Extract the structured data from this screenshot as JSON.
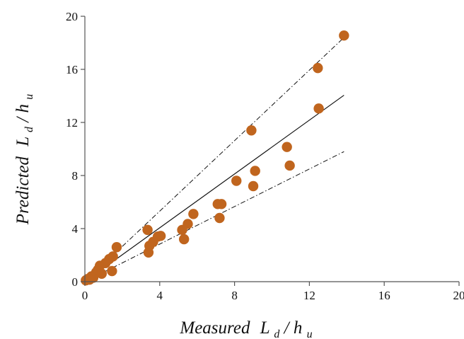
{
  "chart_data": {
    "type": "scatter",
    "title": "",
    "xlabel": {
      "prefix": "Measured",
      "main": "L",
      "sub": "d",
      "slash": "/",
      "main2": "h",
      "sub2": "u"
    },
    "ylabel": {
      "prefix": "Predicted",
      "main": "L",
      "sub": "d",
      "slash": "/",
      "main2": "h",
      "sub2": "u"
    },
    "xlim": [
      0,
      20
    ],
    "ylim": [
      0,
      20
    ],
    "xticks": [
      0,
      4,
      8,
      12,
      16,
      20
    ],
    "yticks": [
      0,
      4,
      8,
      12,
      16,
      20
    ],
    "xtick_labels": [
      "0",
      "4",
      "8",
      "12",
      "16",
      "20"
    ],
    "ytick_labels": [
      "0",
      "4",
      "8",
      "12",
      "16",
      "20"
    ],
    "grid": false,
    "marker_color": "#C0651E",
    "line_color": "#111111",
    "series": [
      {
        "values": [
          [
            0.05,
            0.1
          ],
          [
            0.15,
            0.2
          ],
          [
            0.25,
            0.15
          ],
          [
            0.35,
            0.4
          ],
          [
            0.45,
            0.3
          ],
          [
            0.6,
            0.7
          ],
          [
            0.7,
            0.9
          ],
          [
            0.8,
            1.2
          ],
          [
            0.9,
            0.6
          ],
          [
            1.1,
            1.4
          ],
          [
            1.3,
            1.7
          ],
          [
            1.5,
            1.9
          ],
          [
            1.7,
            2.6
          ],
          [
            1.45,
            0.8
          ],
          [
            3.35,
            3.9
          ],
          [
            3.4,
            2.2
          ],
          [
            3.45,
            2.7
          ],
          [
            3.65,
            3.0
          ],
          [
            3.9,
            3.4
          ],
          [
            4.05,
            3.45
          ],
          [
            5.2,
            3.9
          ],
          [
            5.3,
            3.2
          ],
          [
            5.5,
            4.35
          ],
          [
            5.8,
            5.1
          ],
          [
            7.1,
            5.85
          ],
          [
            7.2,
            4.8
          ],
          [
            7.3,
            5.85
          ],
          [
            8.1,
            7.6
          ],
          [
            8.9,
            11.4
          ],
          [
            9.0,
            7.2
          ],
          [
            9.1,
            8.35
          ],
          [
            10.8,
            10.15
          ],
          [
            10.95,
            8.75
          ],
          [
            12.45,
            16.1
          ],
          [
            12.5,
            13.05
          ],
          [
            13.85,
            18.55
          ]
        ]
      }
    ],
    "lines": [
      {
        "kind": "fit",
        "x": [
          0,
          13.85
        ],
        "y": [
          0,
          14.05
        ]
      },
      {
        "kind": "upper-bound",
        "x": [
          0,
          13.85
        ],
        "y": [
          0,
          18.4
        ]
      },
      {
        "kind": "lower-bound",
        "x": [
          0,
          13.85
        ],
        "y": [
          0,
          9.8
        ]
      }
    ]
  }
}
